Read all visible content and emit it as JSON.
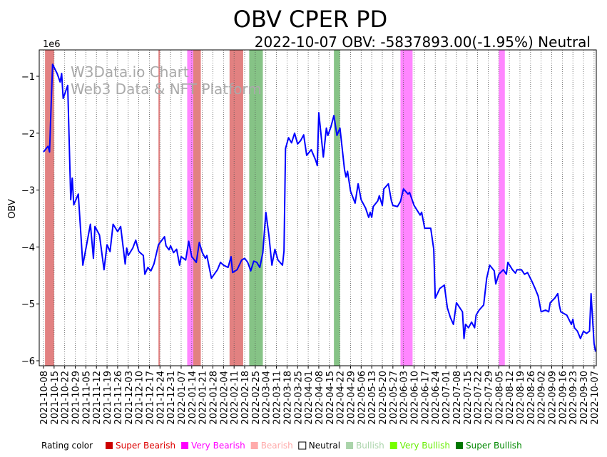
{
  "chart_data": {
    "type": "line",
    "title": "OBV CPER PD",
    "subtitle": "2022-10-07 OBV: -5837893.00(-1.95%) Neutral",
    "ylabel": "OBV",
    "y_multiplier_label": "1e6",
    "watermark": [
      "W3Data.io Chart",
      "Web3 Data & NFT Platform"
    ],
    "start_date": "2021-10-08",
    "xlim_days": [
      0,
      365
    ],
    "ylim": [
      -6.08,
      -0.55
    ],
    "yticks": [
      -1,
      -2,
      -3,
      -4,
      -5,
      -6
    ],
    "ytick_labels": [
      "−1",
      "−2",
      "−3",
      "−4",
      "−5",
      "−6"
    ],
    "xtick_labels": [
      "2021-10-08",
      "2021-10-15",
      "2021-10-22",
      "2021-10-29",
      "2021-11-05",
      "2021-11-12",
      "2021-11-19",
      "2021-11-26",
      "2021-12-03",
      "2021-12-10",
      "2021-12-17",
      "2021-12-24",
      "2021-12-31",
      "2022-01-07",
      "2022-01-14",
      "2022-01-21",
      "2022-01-28",
      "2022-02-04",
      "2022-02-11",
      "2022-02-18",
      "2022-02-25",
      "2022-03-04",
      "2022-03-11",
      "2022-03-18",
      "2022-03-25",
      "2022-04-01",
      "2022-04-08",
      "2022-04-15",
      "2022-04-22",
      "2022-04-29",
      "2022-05-06",
      "2022-05-13",
      "2022-05-20",
      "2022-05-27",
      "2022-06-03",
      "2022-06-10",
      "2022-06-17",
      "2022-06-24",
      "2022-07-01",
      "2022-07-08",
      "2022-07-15",
      "2022-07-22",
      "2022-07-29",
      "2022-08-05",
      "2022-08-12",
      "2022-08-19",
      "2022-08-26",
      "2022-09-02",
      "2022-09-09",
      "2022-09-16",
      "2022-09-23",
      "2022-09-30",
      "2022-10-07"
    ],
    "line_color": "#0000ff",
    "series": [
      {
        "name": "OBV",
        "x_days": [
          0,
          3,
          4,
          5,
          6,
          9,
          11,
          12,
          13,
          16,
          18,
          19,
          20,
          23,
          26,
          31,
          33,
          34,
          37,
          40,
          42,
          44,
          46,
          49,
          51,
          54,
          55,
          56,
          59,
          61,
          63,
          66,
          67,
          69,
          71,
          73,
          76,
          80,
          81,
          83,
          84,
          86,
          88,
          90,
          91,
          94,
          96,
          98,
          101,
          103,
          105,
          107,
          108,
          111,
          115,
          117,
          119,
          122,
          124,
          125,
          128,
          131,
          133,
          135,
          137,
          139,
          141,
          143,
          145,
          147,
          149,
          151,
          153,
          155,
          158,
          159,
          160,
          162,
          164,
          166,
          168,
          170,
          172,
          174,
          177,
          180,
          181,
          182,
          185,
          187,
          188,
          190,
          192,
          194,
          196,
          199,
          200,
          201,
          203,
          206,
          208,
          210,
          213,
          215,
          216,
          217,
          218,
          221,
          222,
          224,
          225,
          228,
          230,
          231,
          234,
          236,
          238,
          241,
          242,
          245,
          249,
          250,
          252,
          256,
          258,
          259,
          262,
          265,
          267,
          269,
          271,
          273,
          277,
          278,
          279,
          281,
          283,
          285,
          286,
          288,
          291,
          293,
          295,
          298,
          299,
          301,
          304,
          306,
          307,
          310,
          312,
          313,
          316,
          318,
          320,
          323,
          325,
          327,
          329,
          332,
          334,
          335,
          338,
          340,
          341,
          342,
          344,
          346,
          349,
          350,
          351,
          353,
          355,
          357,
          359,
          361,
          362,
          364,
          365
        ],
        "values": [
          -2.33,
          -2.23,
          -2.33,
          -1.54,
          -0.79,
          -0.95,
          -1.1,
          -0.95,
          -1.39,
          -1.16,
          -3.17,
          -2.79,
          -3.26,
          -3.07,
          -4.32,
          -3.6,
          -4.2,
          -3.64,
          -3.79,
          -4.4,
          -3.96,
          -4.08,
          -3.6,
          -3.73,
          -3.64,
          -4.3,
          -4.02,
          -4.15,
          -4.02,
          -3.88,
          -4.08,
          -4.15,
          -4.48,
          -4.36,
          -4.42,
          -4.3,
          -3.96,
          -3.82,
          -3.98,
          -4.05,
          -3.98,
          -4.1,
          -4.04,
          -4.32,
          -4.17,
          -4.23,
          -3.9,
          -4.17,
          -4.27,
          -3.92,
          -4.1,
          -4.2,
          -4.15,
          -4.55,
          -4.4,
          -4.27,
          -4.32,
          -4.36,
          -4.17,
          -4.45,
          -4.4,
          -4.23,
          -4.2,
          -4.27,
          -4.42,
          -4.25,
          -4.27,
          -4.36,
          -4.1,
          -3.39,
          -3.79,
          -4.32,
          -4.04,
          -4.23,
          -4.32,
          -4.07,
          -2.27,
          -2.08,
          -2.17,
          -2.0,
          -2.19,
          -2.13,
          -2.03,
          -2.39,
          -2.29,
          -2.48,
          -2.57,
          -1.64,
          -2.42,
          -1.91,
          -2.04,
          -1.89,
          -1.69,
          -2.04,
          -1.91,
          -2.64,
          -2.77,
          -2.67,
          -3.02,
          -3.23,
          -2.89,
          -3.17,
          -3.32,
          -3.48,
          -3.39,
          -3.48,
          -3.29,
          -3.19,
          -3.1,
          -3.27,
          -2.98,
          -2.89,
          -3.19,
          -3.27,
          -3.29,
          -3.2,
          -2.98,
          -3.07,
          -3.04,
          -3.27,
          -3.44,
          -3.39,
          -3.67,
          -3.67,
          -4.04,
          -4.9,
          -4.73,
          -4.67,
          -5.07,
          -5.24,
          -5.36,
          -4.98,
          -5.14,
          -5.61,
          -5.36,
          -5.42,
          -5.32,
          -5.42,
          -5.2,
          -5.11,
          -5.02,
          -4.55,
          -4.32,
          -4.42,
          -4.65,
          -4.48,
          -4.4,
          -4.48,
          -4.27,
          -4.4,
          -4.46,
          -4.4,
          -4.4,
          -4.48,
          -4.45,
          -4.61,
          -4.73,
          -4.86,
          -5.14,
          -5.11,
          -5.14,
          -4.98,
          -4.9,
          -4.82,
          -5.02,
          -5.14,
          -5.17,
          -5.2,
          -5.36,
          -5.27,
          -5.42,
          -5.48,
          -5.61,
          -5.48,
          -5.52,
          -5.48,
          -4.82,
          -5.7,
          -5.84
        ]
      }
    ],
    "bands": [
      {
        "from": 1,
        "to": 7,
        "rating": "Super Bearish",
        "color": "#e07a7a"
      },
      {
        "from": 76,
        "to": 77,
        "rating": "Super Bearish",
        "color": "#e07a7a"
      },
      {
        "from": 95,
        "to": 99,
        "rating": "Very Bearish",
        "color": "#ff80ff"
      },
      {
        "from": 99,
        "to": 104,
        "rating": "Super Bearish",
        "color": "#e07a7a"
      },
      {
        "from": 123,
        "to": 132,
        "rating": "Super Bearish",
        "color": "#e07a7a"
      },
      {
        "from": 136,
        "to": 145,
        "rating": "Super Bullish",
        "color": "#80c080"
      },
      {
        "from": 192,
        "to": 196,
        "rating": "Super Bullish",
        "color": "#80c080"
      },
      {
        "from": 236,
        "to": 244,
        "rating": "Very Bearish",
        "color": "#ff80ff"
      },
      {
        "from": 301,
        "to": 305,
        "rating": "Very Bearish",
        "color": "#ff80ff"
      }
    ],
    "legend": {
      "title": "Rating color",
      "placement": "bottom",
      "items": [
        {
          "label": "Super Bearish",
          "color": "#cc0000",
          "text_color": "#dd0000"
        },
        {
          "label": "Very Bearish",
          "color": "#ff00ff",
          "text_color": "#ff00ff"
        },
        {
          "label": "Bearish",
          "color": "#ffaaaa",
          "text_color": "#ffaaaa"
        },
        {
          "label": "Neutral",
          "color": "#ffffff",
          "text_color": "#000000"
        },
        {
          "label": "Bullish",
          "color": "#aad4aa",
          "text_color": "#aad4aa"
        },
        {
          "label": "Very Bullish",
          "color": "#77ff00",
          "text_color": "#66ee00"
        },
        {
          "label": "Super Bullish",
          "color": "#007700",
          "text_color": "#008800"
        }
      ]
    }
  }
}
